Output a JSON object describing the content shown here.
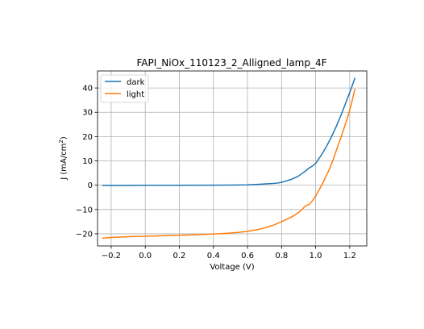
{
  "chart_data": {
    "type": "line",
    "title": "FAPI_NiOx_110123_2_Alligned_lamp_4F",
    "xlabel": "Voltage (V)",
    "ylabel_main": "J (mA/cm",
    "ylabel_sup": "2",
    "ylabel_close": ")",
    "xlim": [
      -0.28,
      1.3
    ],
    "ylim": [
      -25,
      47
    ],
    "xticks": [
      -0.2,
      0.0,
      0.2,
      0.4,
      0.6,
      0.8,
      1.0,
      1.2
    ],
    "xtick_labels": [
      "−0.2",
      "0.0",
      "0.2",
      "0.4",
      "0.6",
      "0.8",
      "1.0",
      "1.2"
    ],
    "yticks": [
      -20,
      -10,
      0,
      10,
      20,
      30,
      40
    ],
    "ytick_labels": [
      "−20",
      "−10",
      "0",
      "10",
      "20",
      "30",
      "40"
    ],
    "grid": true,
    "legend_position": "top-left",
    "series": [
      {
        "name": "dark",
        "color": "#1f77b4",
        "x": [
          -0.25,
          -0.1,
          0.0,
          0.2,
          0.4,
          0.5,
          0.6,
          0.65,
          0.7,
          0.75,
          0.78,
          0.8,
          0.83,
          0.86,
          0.88,
          0.9,
          0.92,
          0.94,
          0.96,
          0.98,
          1.0,
          1.03,
          1.06,
          1.09,
          1.12,
          1.15,
          1.18,
          1.21,
          1.23
        ],
        "y": [
          -0.1,
          -0.1,
          -0.05,
          -0.05,
          0.0,
          0.05,
          0.15,
          0.3,
          0.5,
          0.7,
          0.9,
          1.2,
          1.8,
          2.5,
          3.1,
          3.8,
          4.8,
          5.8,
          7.0,
          7.8,
          9.0,
          12.0,
          15.5,
          19.5,
          24.0,
          29.0,
          34.5,
          40.0,
          44.0
        ]
      },
      {
        "name": "light",
        "color": "#ff7f0e",
        "x": [
          -0.25,
          -0.2,
          -0.1,
          0.0,
          0.1,
          0.2,
          0.3,
          0.4,
          0.5,
          0.55,
          0.6,
          0.65,
          0.7,
          0.75,
          0.8,
          0.85,
          0.88,
          0.9,
          0.92,
          0.94,
          0.96,
          0.98,
          1.0,
          1.02,
          1.05,
          1.08,
          1.1,
          1.13,
          1.16,
          1.19,
          1.21,
          1.23
        ],
        "y": [
          -21.8,
          -21.5,
          -21.2,
          -21.0,
          -20.8,
          -20.6,
          -20.4,
          -20.1,
          -19.7,
          -19.4,
          -19.0,
          -18.4,
          -17.6,
          -16.5,
          -15.0,
          -13.4,
          -12.2,
          -11.2,
          -10.0,
          -8.5,
          -8.0,
          -6.5,
          -4.5,
          -2.0,
          2.0,
          6.5,
          10.0,
          16.0,
          22.0,
          28.5,
          33.5,
          39.5
        ]
      }
    ]
  }
}
